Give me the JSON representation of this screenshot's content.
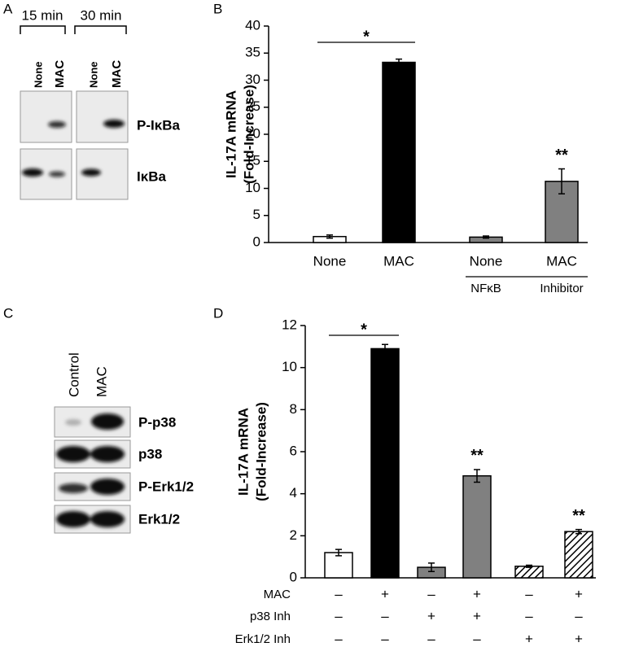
{
  "panel_labels": [
    "A",
    "B",
    "C",
    "D"
  ],
  "blot_a": {
    "time_labels": [
      "15 min",
      "30 min"
    ],
    "lane_labels": [
      "None",
      "MAC",
      "None",
      "MAC"
    ],
    "rows": [
      "P-IκBa",
      "IκBa"
    ]
  },
  "blot_c": {
    "lane_labels": [
      "Control",
      "MAC"
    ],
    "rows": [
      "P-p38",
      "p38",
      "P-Erk1/2",
      "Erk1/2"
    ]
  },
  "chart_data": [
    {
      "type": "bar",
      "y_label": [
        "IL-17A mRNA",
        "(Fold-Increase)"
      ],
      "categories": [
        "None",
        "MAC",
        "None",
        "MAC"
      ],
      "values": [
        1.1,
        33.3,
        1.0,
        11.3
      ],
      "errors": [
        0.3,
        0.6,
        0.2,
        2.3
      ],
      "colors": [
        "#ffffff",
        "#000000",
        "#808080",
        "#808080"
      ],
      "hatch": [
        false,
        false,
        false,
        false
      ],
      "bracket_label": "*",
      "bar_labels": [
        null,
        null,
        null,
        "**"
      ],
      "group_labels": [
        "NFκB",
        "Inhibitor"
      ],
      "ylim": [
        0,
        40
      ],
      "yticks": [
        0,
        5,
        10,
        15,
        20,
        25,
        30,
        35,
        40
      ]
    },
    {
      "type": "bar",
      "y_label": [
        "IL-17A mRNA",
        "(Fold-Increase)"
      ],
      "values": [
        1.2,
        10.9,
        0.5,
        4.85,
        0.55,
        2.2
      ],
      "errors": [
        0.15,
        0.2,
        0.2,
        0.3,
        0.05,
        0.1
      ],
      "colors": [
        "#ffffff",
        "#000000",
        "#808080",
        "#808080",
        "#ffffff",
        "#ffffff"
      ],
      "hatch": [
        false,
        false,
        false,
        false,
        true,
        true
      ],
      "bracket_label": "*",
      "bar_labels": [
        null,
        null,
        null,
        "**",
        null,
        "**"
      ],
      "conditions": [
        {
          "name": "MAC",
          "values": [
            "–",
            "+",
            "–",
            "+",
            "–",
            "+"
          ]
        },
        {
          "name": "p38 Inh",
          "values": [
            "–",
            "–",
            "+",
            "+",
            "–",
            "–"
          ]
        },
        {
          "name": "Erk1/2 Inh",
          "values": [
            "–",
            "–",
            "–",
            "–",
            "+",
            "+"
          ]
        }
      ],
      "ylim": [
        0,
        12
      ],
      "yticks": [
        0,
        2,
        4,
        6,
        8,
        10,
        12
      ]
    }
  ]
}
